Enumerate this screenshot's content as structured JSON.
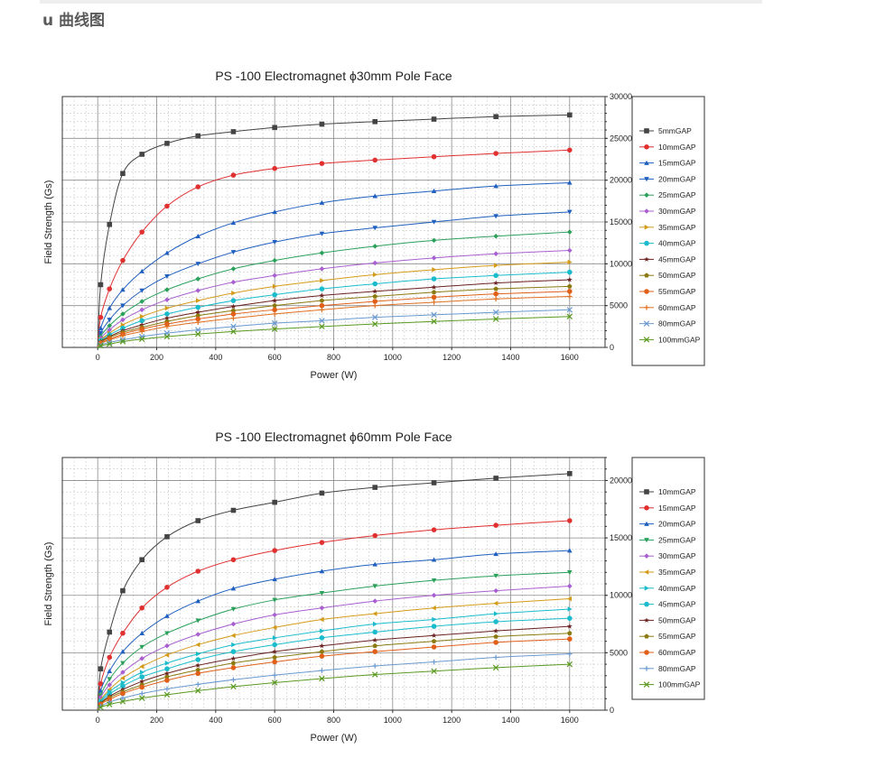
{
  "page": {
    "section_title": "u 曲线图"
  },
  "chart_data": [
    {
      "type": "line",
      "title": "PS -100 Electromagnet ϕ30mm Pole Face",
      "xlabel": "Power (W)",
      "ylabel": "Field Strength (Gs)",
      "xlim": [
        -120,
        1720
      ],
      "ylim": [
        0,
        30000
      ],
      "xticks": [
        0,
        200,
        400,
        600,
        800,
        1000,
        1200,
        1400,
        1600
      ],
      "yticks": [
        0,
        5000,
        10000,
        15000,
        20000,
        25000,
        30000
      ],
      "grid": true,
      "legend_position": "right",
      "x": [
        0,
        10,
        40,
        85,
        150,
        235,
        340,
        460,
        600,
        760,
        940,
        1140,
        1350,
        1600
      ],
      "series": [
        {
          "name": "5mmGAP",
          "color": "#444444",
          "marker": "square",
          "values": [
            0,
            7500,
            14700,
            20800,
            23100,
            24400,
            25300,
            25800,
            26300,
            26700,
            27000,
            27300,
            27600,
            27800
          ]
        },
        {
          "name": "10mmGAP",
          "color": "#e03030",
          "marker": "circle",
          "values": [
            0,
            3600,
            7000,
            10400,
            13800,
            16900,
            19200,
            20600,
            21400,
            22000,
            22400,
            22800,
            23200,
            23600
          ]
        },
        {
          "name": "15mmGAP",
          "color": "#1f5fbf",
          "marker": "triangle-up",
          "values": [
            0,
            2300,
            4700,
            6900,
            9100,
            11300,
            13300,
            14900,
            16200,
            17300,
            18100,
            18700,
            19300,
            19700
          ]
        },
        {
          "name": "20mmGAP",
          "color": "#1f5fbf",
          "marker": "triangle-down",
          "values": [
            0,
            1700,
            3300,
            5000,
            6800,
            8500,
            10000,
            11400,
            12600,
            13600,
            14300,
            15000,
            15700,
            16200
          ]
        },
        {
          "name": "25mmGAP",
          "color": "#2aa05a",
          "marker": "diamond",
          "values": [
            0,
            1300,
            2600,
            4000,
            5500,
            6900,
            8200,
            9400,
            10400,
            11300,
            12100,
            12800,
            13300,
            13800
          ]
        },
        {
          "name": "30mmGAP",
          "color": "#a85fd0",
          "marker": "diamond",
          "values": [
            0,
            1100,
            2100,
            3300,
            4500,
            5700,
            6800,
            7800,
            8600,
            9400,
            10100,
            10700,
            11200,
            11600
          ]
        },
        {
          "name": "35mmGAP",
          "color": "#d49b1a",
          "marker": "triangle-right",
          "values": [
            0,
            900,
            1700,
            2700,
            3700,
            4700,
            5600,
            6500,
            7300,
            8000,
            8700,
            9300,
            9800,
            10200
          ]
        },
        {
          "name": "40mmGAP",
          "color": "#1abccc",
          "marker": "circle",
          "values": [
            0,
            800,
            1500,
            2300,
            3200,
            4000,
            4800,
            5600,
            6300,
            7000,
            7600,
            8200,
            8600,
            9000
          ]
        },
        {
          "name": "45mmGAP",
          "color": "#6a2020",
          "marker": "star",
          "values": [
            0,
            700,
            1300,
            2000,
            2700,
            3500,
            4200,
            4900,
            5600,
            6200,
            6700,
            7200,
            7700,
            8100
          ]
        },
        {
          "name": "50mmGAP",
          "color": "#8a7a10",
          "marker": "pentagon",
          "values": [
            0,
            600,
            1200,
            1800,
            2400,
            3100,
            3800,
            4400,
            5000,
            5600,
            6100,
            6600,
            7000,
            7300
          ]
        },
        {
          "name": "55mmGAP",
          "color": "#e0601a",
          "marker": "circle",
          "values": [
            0,
            500,
            1000,
            1600,
            2200,
            2800,
            3400,
            4000,
            4500,
            5000,
            5500,
            6000,
            6400,
            6700
          ]
        },
        {
          "name": "60mmGAP",
          "color": "#e07020",
          "marker": "plus",
          "values": [
            0,
            450,
            900,
            1400,
            1900,
            2500,
            3000,
            3500,
            4000,
            4500,
            5000,
            5400,
            5800,
            6100
          ]
        },
        {
          "name": "80mmGAP",
          "color": "#6a9ad0",
          "marker": "x",
          "values": [
            0,
            300,
            600,
            900,
            1300,
            1700,
            2100,
            2500,
            2900,
            3200,
            3600,
            3900,
            4200,
            4500
          ]
        },
        {
          "name": "100mmGAP",
          "color": "#5a9a20",
          "marker": "x",
          "values": [
            0,
            200,
            400,
            700,
            1000,
            1300,
            1600,
            1900,
            2200,
            2500,
            2800,
            3100,
            3400,
            3700
          ]
        }
      ]
    },
    {
      "type": "line",
      "title": "PS -100 Electromagnet ϕ60mm Pole Face",
      "xlabel": "Power (W)",
      "ylabel": "Field Strength (Gs)",
      "xlim": [
        -120,
        1720
      ],
      "ylim": [
        0,
        22000
      ],
      "xticks": [
        0,
        200,
        400,
        600,
        800,
        1000,
        1200,
        1400,
        1600
      ],
      "yticks": [
        0,
        5000,
        10000,
        15000,
        20000
      ],
      "grid": true,
      "legend_position": "right",
      "x": [
        0,
        10,
        40,
        85,
        150,
        235,
        340,
        460,
        600,
        760,
        940,
        1140,
        1350,
        1600
      ],
      "series": [
        {
          "name": "10mmGAP",
          "color": "#444444",
          "marker": "square",
          "values": [
            0,
            3600,
            6800,
            10400,
            13100,
            15100,
            16500,
            17400,
            18100,
            18900,
            19400,
            19800,
            20200,
            20600
          ]
        },
        {
          "name": "15mmGAP",
          "color": "#e03030",
          "marker": "circle",
          "values": [
            0,
            2300,
            4600,
            6700,
            8900,
            10700,
            12100,
            13100,
            13900,
            14600,
            15200,
            15700,
            16100,
            16500
          ]
        },
        {
          "name": "20mmGAP",
          "color": "#1f5fbf",
          "marker": "triangle-up",
          "values": [
            0,
            1700,
            3400,
            5100,
            6700,
            8200,
            9500,
            10600,
            11400,
            12100,
            12700,
            13100,
            13600,
            13900
          ]
        },
        {
          "name": "25mmGAP",
          "color": "#2aa05a",
          "marker": "triangle-down",
          "values": [
            0,
            1300,
            2700,
            4100,
            5500,
            6700,
            7800,
            8800,
            9600,
            10200,
            10800,
            11300,
            11700,
            12000
          ]
        },
        {
          "name": "30mmGAP",
          "color": "#a85fd0",
          "marker": "diamond",
          "values": [
            0,
            1100,
            2200,
            3300,
            4500,
            5600,
            6600,
            7500,
            8300,
            8900,
            9500,
            10000,
            10400,
            10800
          ]
        },
        {
          "name": "35mmGAP",
          "color": "#d49b1a",
          "marker": "triangle-left",
          "values": [
            0,
            900,
            1800,
            2800,
            3800,
            4800,
            5700,
            6500,
            7200,
            7900,
            8400,
            8900,
            9300,
            9700
          ]
        },
        {
          "name": "40mmGAP",
          "color": "#1abccc",
          "marker": "triangle-right",
          "values": [
            0,
            800,
            1600,
            2400,
            3300,
            4100,
            4900,
            5700,
            6300,
            6900,
            7500,
            7900,
            8400,
            8800
          ]
        },
        {
          "name": "45mmGAP",
          "color": "#1abccc",
          "marker": "circle",
          "values": [
            0,
            700,
            1400,
            2100,
            2900,
            3600,
            4400,
            5100,
            5700,
            6300,
            6800,
            7300,
            7700,
            8000
          ]
        },
        {
          "name": "50mmGAP",
          "color": "#6a2020",
          "marker": "star",
          "values": [
            0,
            600,
            1200,
            1800,
            2500,
            3200,
            3900,
            4500,
            5100,
            5600,
            6100,
            6500,
            6900,
            7300
          ]
        },
        {
          "name": "55mmGAP",
          "color": "#8a7a10",
          "marker": "pentagon",
          "values": [
            0,
            550,
            1100,
            1600,
            2200,
            2900,
            3500,
            4100,
            4600,
            5100,
            5600,
            6000,
            6400,
            6700
          ]
        },
        {
          "name": "60mmGAP",
          "color": "#e0601a",
          "marker": "circle",
          "values": [
            0,
            500,
            950,
            1450,
            2000,
            2600,
            3200,
            3700,
            4200,
            4700,
            5100,
            5500,
            5900,
            6200
          ]
        },
        {
          "name": "80mmGAP",
          "color": "#6a9ad0",
          "marker": "plus",
          "values": [
            0,
            350,
            700,
            1050,
            1450,
            1850,
            2250,
            2650,
            3050,
            3450,
            3850,
            4200,
            4600,
            4900
          ]
        },
        {
          "name": "100mmGAP",
          "color": "#5a9a20",
          "marker": "x",
          "values": [
            0,
            250,
            500,
            750,
            1050,
            1350,
            1700,
            2050,
            2400,
            2750,
            3100,
            3400,
            3700,
            4000
          ]
        }
      ]
    }
  ]
}
